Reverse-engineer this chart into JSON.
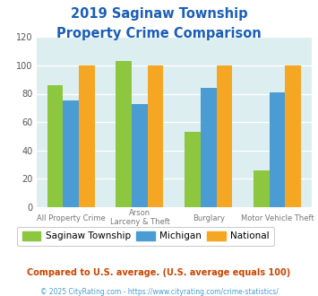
{
  "title_line1": "2019 Saginaw Township",
  "title_line2": "Property Crime Comparison",
  "cat_labels_line1": [
    "All Property Crime",
    "Arson",
    "Burglary",
    "Motor Vehicle Theft"
  ],
  "cat_labels_line2": [
    "",
    "Larceny & Theft",
    "",
    ""
  ],
  "saginaw": [
    86,
    103,
    53,
    26
  ],
  "michigan": [
    75,
    73,
    84,
    81
  ],
  "national": [
    100,
    100,
    100,
    100
  ],
  "bar_colors": {
    "saginaw": "#8dc63f",
    "michigan": "#4b9cd3",
    "national": "#f5a623"
  },
  "ylim": [
    0,
    120
  ],
  "yticks": [
    0,
    20,
    40,
    60,
    80,
    100,
    120
  ],
  "legend_labels": [
    "Saginaw Township",
    "Michigan",
    "National"
  ],
  "footnote1": "Compared to U.S. average. (U.S. average equals 100)",
  "footnote2": "© 2025 CityRating.com - https://www.cityrating.com/crime-statistics/",
  "title_color": "#1a5eb8",
  "footnote1_color": "#cc4400",
  "footnote2_color": "#4b9cd3",
  "plot_bg": "#ddeef0"
}
